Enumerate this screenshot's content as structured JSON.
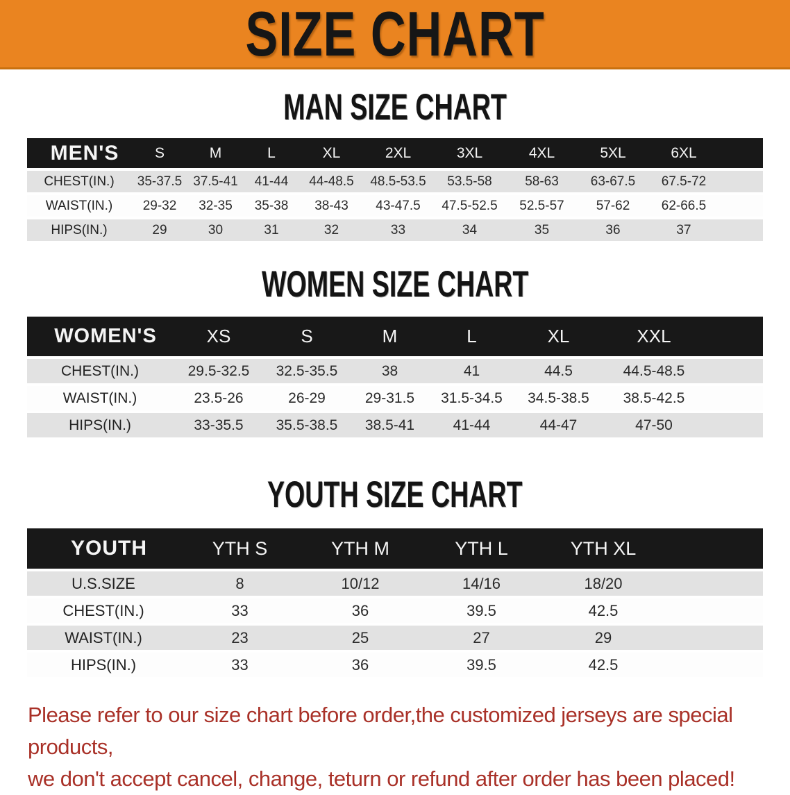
{
  "banner": {
    "title": "SIZE CHART",
    "bg_color": "#EA8420"
  },
  "sections": {
    "men": {
      "heading": "MAN SIZE CHART",
      "table": {
        "header_label": "MEN'S",
        "columns": [
          "S",
          "M",
          "L",
          "XL",
          "2XL",
          "3XL",
          "4XL",
          "5XL",
          "6XL"
        ],
        "rows": [
          {
            "label": "CHEST(IN.)",
            "values": [
              "35-37.5",
              "37.5-41",
              "41-44",
              "44-48.5",
              "48.5-53.5",
              "53.5-58",
              "58-63",
              "63-67.5",
              "67.5-72"
            ]
          },
          {
            "label": "WAIST(IN.)",
            "values": [
              "29-32",
              "32-35",
              "35-38",
              "38-43",
              "43-47.5",
              "47.5-52.5",
              "52.5-57",
              "57-62",
              "62-66.5"
            ]
          },
          {
            "label": "HIPS(IN.)",
            "values": [
              "29",
              "30",
              "31",
              "32",
              "33",
              "34",
              "35",
              "36",
              "37"
            ]
          }
        ]
      }
    },
    "women": {
      "heading": "WOMEN SIZE CHART",
      "table": {
        "header_label": "WOMEN'S",
        "columns": [
          "XS",
          "S",
          "M",
          "L",
          "XL",
          "XXL"
        ],
        "rows": [
          {
            "label": "CHEST(IN.)",
            "values": [
              "29.5-32.5",
              "32.5-35.5",
              "38",
              "41",
              "44.5",
              "44.5-48.5"
            ]
          },
          {
            "label": "WAIST(IN.)",
            "values": [
              "23.5-26",
              "26-29",
              "29-31.5",
              "31.5-34.5",
              "34.5-38.5",
              "38.5-42.5"
            ]
          },
          {
            "label": "HIPS(IN.)",
            "values": [
              "33-35.5",
              "35.5-38.5",
              "38.5-41",
              "41-44",
              "44-47",
              "47-50"
            ]
          }
        ]
      }
    },
    "youth": {
      "heading": "YOUTH SIZE CHART",
      "table": {
        "header_label": "YOUTH",
        "columns": [
          "YTH S",
          "YTH M",
          "YTH L",
          "YTH XL"
        ],
        "rows": [
          {
            "label": "U.S.SIZE",
            "values": [
              "8",
              "10/12",
              "14/16",
              "18/20"
            ]
          },
          {
            "label": "CHEST(IN.)",
            "values": [
              "33",
              "36",
              "39.5",
              "42.5"
            ]
          },
          {
            "label": "WAIST(IN.)",
            "values": [
              "23",
              "25",
              "27",
              "29"
            ]
          },
          {
            "label": "HIPS(IN.)",
            "values": [
              "33",
              "36",
              "39.5",
              "42.5"
            ]
          }
        ]
      }
    }
  },
  "footer": {
    "line1": "Please refer to our size chart before order,the customized jerseys are special products,",
    "line2": "we don't accept cancel, change, teturn or refund after order has been placed!",
    "text_color": "#A93128"
  },
  "colors": {
    "banner_orange": "#EA8420",
    "table_header_black": "#181818",
    "row_gray": "#E2E2E2",
    "row_white": "#FDFDFD"
  }
}
